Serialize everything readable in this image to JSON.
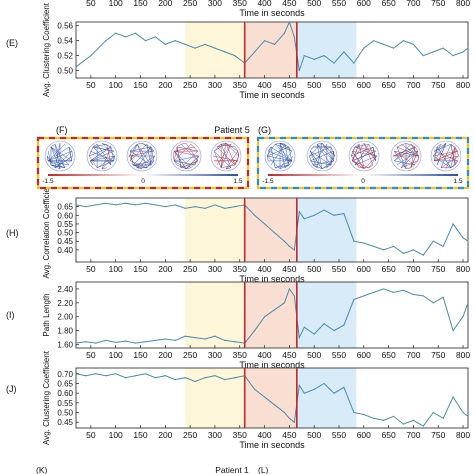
{
  "figure": {
    "title_patient5": "Patient 5",
    "title_patient1": "Patient 1",
    "panel_F": "(F)",
    "panel_G": "(G)",
    "panel_K": "(K)",
    "panel_L": "(L)",
    "colorbar_left": [
      "-1.5",
      "0",
      "1.5"
    ],
    "colorbar_right": [
      "-1.5",
      "0",
      "1.5"
    ]
  },
  "colors": {
    "preictal_band": "#fdf6d8",
    "ictal_band": "#f9dfd2",
    "postictal_band": "#d7ebf8",
    "onset_line": "#c0282d",
    "series": "#4a8cab",
    "frame_red": "#c0282d",
    "frame_yellow": "#f2c318",
    "frame_blue": "#2a8fcf",
    "brain_blue": "#2a4fa0",
    "brain_red": "#c0282d"
  },
  "chart_data": [
    {
      "type": "line",
      "panel": "(E)",
      "ylabel": "Avg. Clustering Coefficient",
      "xlabel": "Time in seconds",
      "xlim": [
        20,
        810
      ],
      "ylim": [
        0.49,
        0.565
      ],
      "yticks": [
        "0.50",
        "0.52",
        "0.54",
        "0.56"
      ],
      "xticks": [
        50,
        100,
        150,
        200,
        250,
        300,
        350,
        400,
        450,
        500,
        550,
        600,
        650,
        700,
        750,
        800
      ],
      "top_tick_labels": [
        "50",
        "100",
        "150",
        "200",
        "250",
        "300",
        "350",
        "400",
        "450",
        "500",
        "550",
        "600",
        "650",
        "700",
        "750",
        "800"
      ],
      "top_axis_label": "Time in seconds",
      "bands": [
        [
          240,
          360
        ],
        [
          360,
          465
        ],
        [
          465,
          585
        ]
      ],
      "onset_lines": [
        360,
        465
      ],
      "x": [
        20,
        50,
        80,
        100,
        120,
        140,
        160,
        180,
        200,
        220,
        240,
        260,
        280,
        300,
        320,
        340,
        360,
        380,
        400,
        420,
        440,
        450,
        460,
        470,
        480,
        500,
        520,
        540,
        560,
        580,
        600,
        620,
        640,
        660,
        680,
        700,
        720,
        740,
        760,
        780,
        800,
        810
      ],
      "y": [
        0.505,
        0.52,
        0.54,
        0.55,
        0.545,
        0.55,
        0.54,
        0.545,
        0.535,
        0.54,
        0.535,
        0.53,
        0.535,
        0.53,
        0.525,
        0.52,
        0.51,
        0.525,
        0.54,
        0.535,
        0.55,
        0.565,
        0.545,
        0.5,
        0.52,
        0.515,
        0.52,
        0.51,
        0.525,
        0.51,
        0.53,
        0.54,
        0.535,
        0.53,
        0.54,
        0.535,
        0.52,
        0.525,
        0.53,
        0.52,
        0.525,
        0.53
      ]
    },
    {
      "type": "line",
      "panel": "(H)",
      "ylabel": "Avg. Correlation Coefficient",
      "xlabel": "Time in seconds",
      "xlim": [
        20,
        810
      ],
      "ylim": [
        0.33,
        0.7
      ],
      "yticks": [
        "0.40",
        "0.45",
        "0.50",
        "0.55",
        "0.60",
        "0.65"
      ],
      "xticks": [
        50,
        100,
        150,
        200,
        250,
        300,
        350,
        400,
        450,
        500,
        550,
        600,
        650,
        700,
        750,
        800
      ],
      "bands": [
        [
          240,
          360
        ],
        [
          360,
          465
        ],
        [
          465,
          585
        ]
      ],
      "onset_lines": [
        360,
        465
      ],
      "x": [
        20,
        40,
        60,
        80,
        100,
        120,
        140,
        160,
        180,
        200,
        220,
        240,
        260,
        280,
        300,
        320,
        340,
        360,
        380,
        400,
        420,
        440,
        450,
        460,
        470,
        480,
        500,
        520,
        540,
        560,
        580,
        600,
        620,
        640,
        660,
        680,
        700,
        720,
        740,
        760,
        780,
        800,
        810
      ],
      "y": [
        0.66,
        0.65,
        0.66,
        0.67,
        0.66,
        0.67,
        0.66,
        0.67,
        0.66,
        0.65,
        0.66,
        0.64,
        0.65,
        0.64,
        0.66,
        0.64,
        0.65,
        0.66,
        0.6,
        0.55,
        0.5,
        0.45,
        0.42,
        0.4,
        0.62,
        0.58,
        0.6,
        0.63,
        0.6,
        0.61,
        0.45,
        0.44,
        0.42,
        0.4,
        0.42,
        0.38,
        0.4,
        0.37,
        0.45,
        0.42,
        0.55,
        0.47,
        0.45
      ]
    },
    {
      "type": "line",
      "panel": "(I)",
      "ylabel": "Path Length",
      "xlabel": "Time in seconds",
      "xlim": [
        20,
        810
      ],
      "ylim": [
        1.55,
        2.5
      ],
      "yticks": [
        "1.60",
        "1.80",
        "2.00",
        "2.20",
        "2.40"
      ],
      "xticks": [
        50,
        100,
        150,
        200,
        250,
        300,
        350,
        400,
        450,
        500,
        550,
        600,
        650,
        700,
        750,
        800
      ],
      "bands": [
        [
          240,
          360
        ],
        [
          360,
          465
        ],
        [
          465,
          585
        ]
      ],
      "onset_lines": [
        360,
        465
      ],
      "x": [
        20,
        40,
        60,
        80,
        100,
        120,
        140,
        160,
        180,
        200,
        220,
        240,
        260,
        280,
        300,
        320,
        340,
        360,
        380,
        400,
        420,
        440,
        450,
        460,
        470,
        480,
        500,
        520,
        540,
        560,
        580,
        600,
        620,
        640,
        660,
        680,
        700,
        720,
        740,
        760,
        780,
        800,
        810
      ],
      "y": [
        1.62,
        1.64,
        1.62,
        1.66,
        1.63,
        1.65,
        1.62,
        1.64,
        1.66,
        1.68,
        1.66,
        1.72,
        1.7,
        1.68,
        1.72,
        1.66,
        1.64,
        1.62,
        1.8,
        2.0,
        2.1,
        2.2,
        2.4,
        2.3,
        1.7,
        1.85,
        1.75,
        1.9,
        1.8,
        1.88,
        2.25,
        2.3,
        2.35,
        2.4,
        2.35,
        2.38,
        2.32,
        2.3,
        2.2,
        2.28,
        1.8,
        2.0,
        2.2
      ]
    },
    {
      "type": "line",
      "panel": "(J)",
      "ylabel": "Avg. Clustering Coefficient",
      "xlabel": "Time in seconds",
      "xlim": [
        20,
        810
      ],
      "ylim": [
        0.42,
        0.73
      ],
      "yticks": [
        "0.45",
        "0.50",
        "0.55",
        "0.60",
        "0.65",
        "0.70"
      ],
      "xticks": [
        50,
        100,
        150,
        200,
        250,
        300,
        350,
        400,
        450,
        500,
        550,
        600,
        650,
        700,
        750,
        800
      ],
      "bands": [
        [
          240,
          360
        ],
        [
          360,
          465
        ],
        [
          465,
          585
        ]
      ],
      "onset_lines": [
        360,
        465
      ],
      "x": [
        20,
        40,
        60,
        80,
        100,
        120,
        140,
        160,
        180,
        200,
        220,
        240,
        260,
        280,
        300,
        320,
        340,
        360,
        380,
        400,
        420,
        440,
        450,
        460,
        470,
        480,
        500,
        520,
        540,
        560,
        580,
        600,
        620,
        640,
        660,
        680,
        700,
        720,
        740,
        760,
        780,
        800,
        810
      ],
      "y": [
        0.7,
        0.69,
        0.7,
        0.69,
        0.7,
        0.68,
        0.69,
        0.7,
        0.68,
        0.69,
        0.67,
        0.68,
        0.66,
        0.68,
        0.69,
        0.67,
        0.68,
        0.69,
        0.62,
        0.58,
        0.54,
        0.5,
        0.47,
        0.45,
        0.64,
        0.6,
        0.62,
        0.65,
        0.6,
        0.63,
        0.5,
        0.49,
        0.47,
        0.46,
        0.48,
        0.44,
        0.46,
        0.43,
        0.5,
        0.47,
        0.58,
        0.5,
        0.48
      ]
    }
  ]
}
